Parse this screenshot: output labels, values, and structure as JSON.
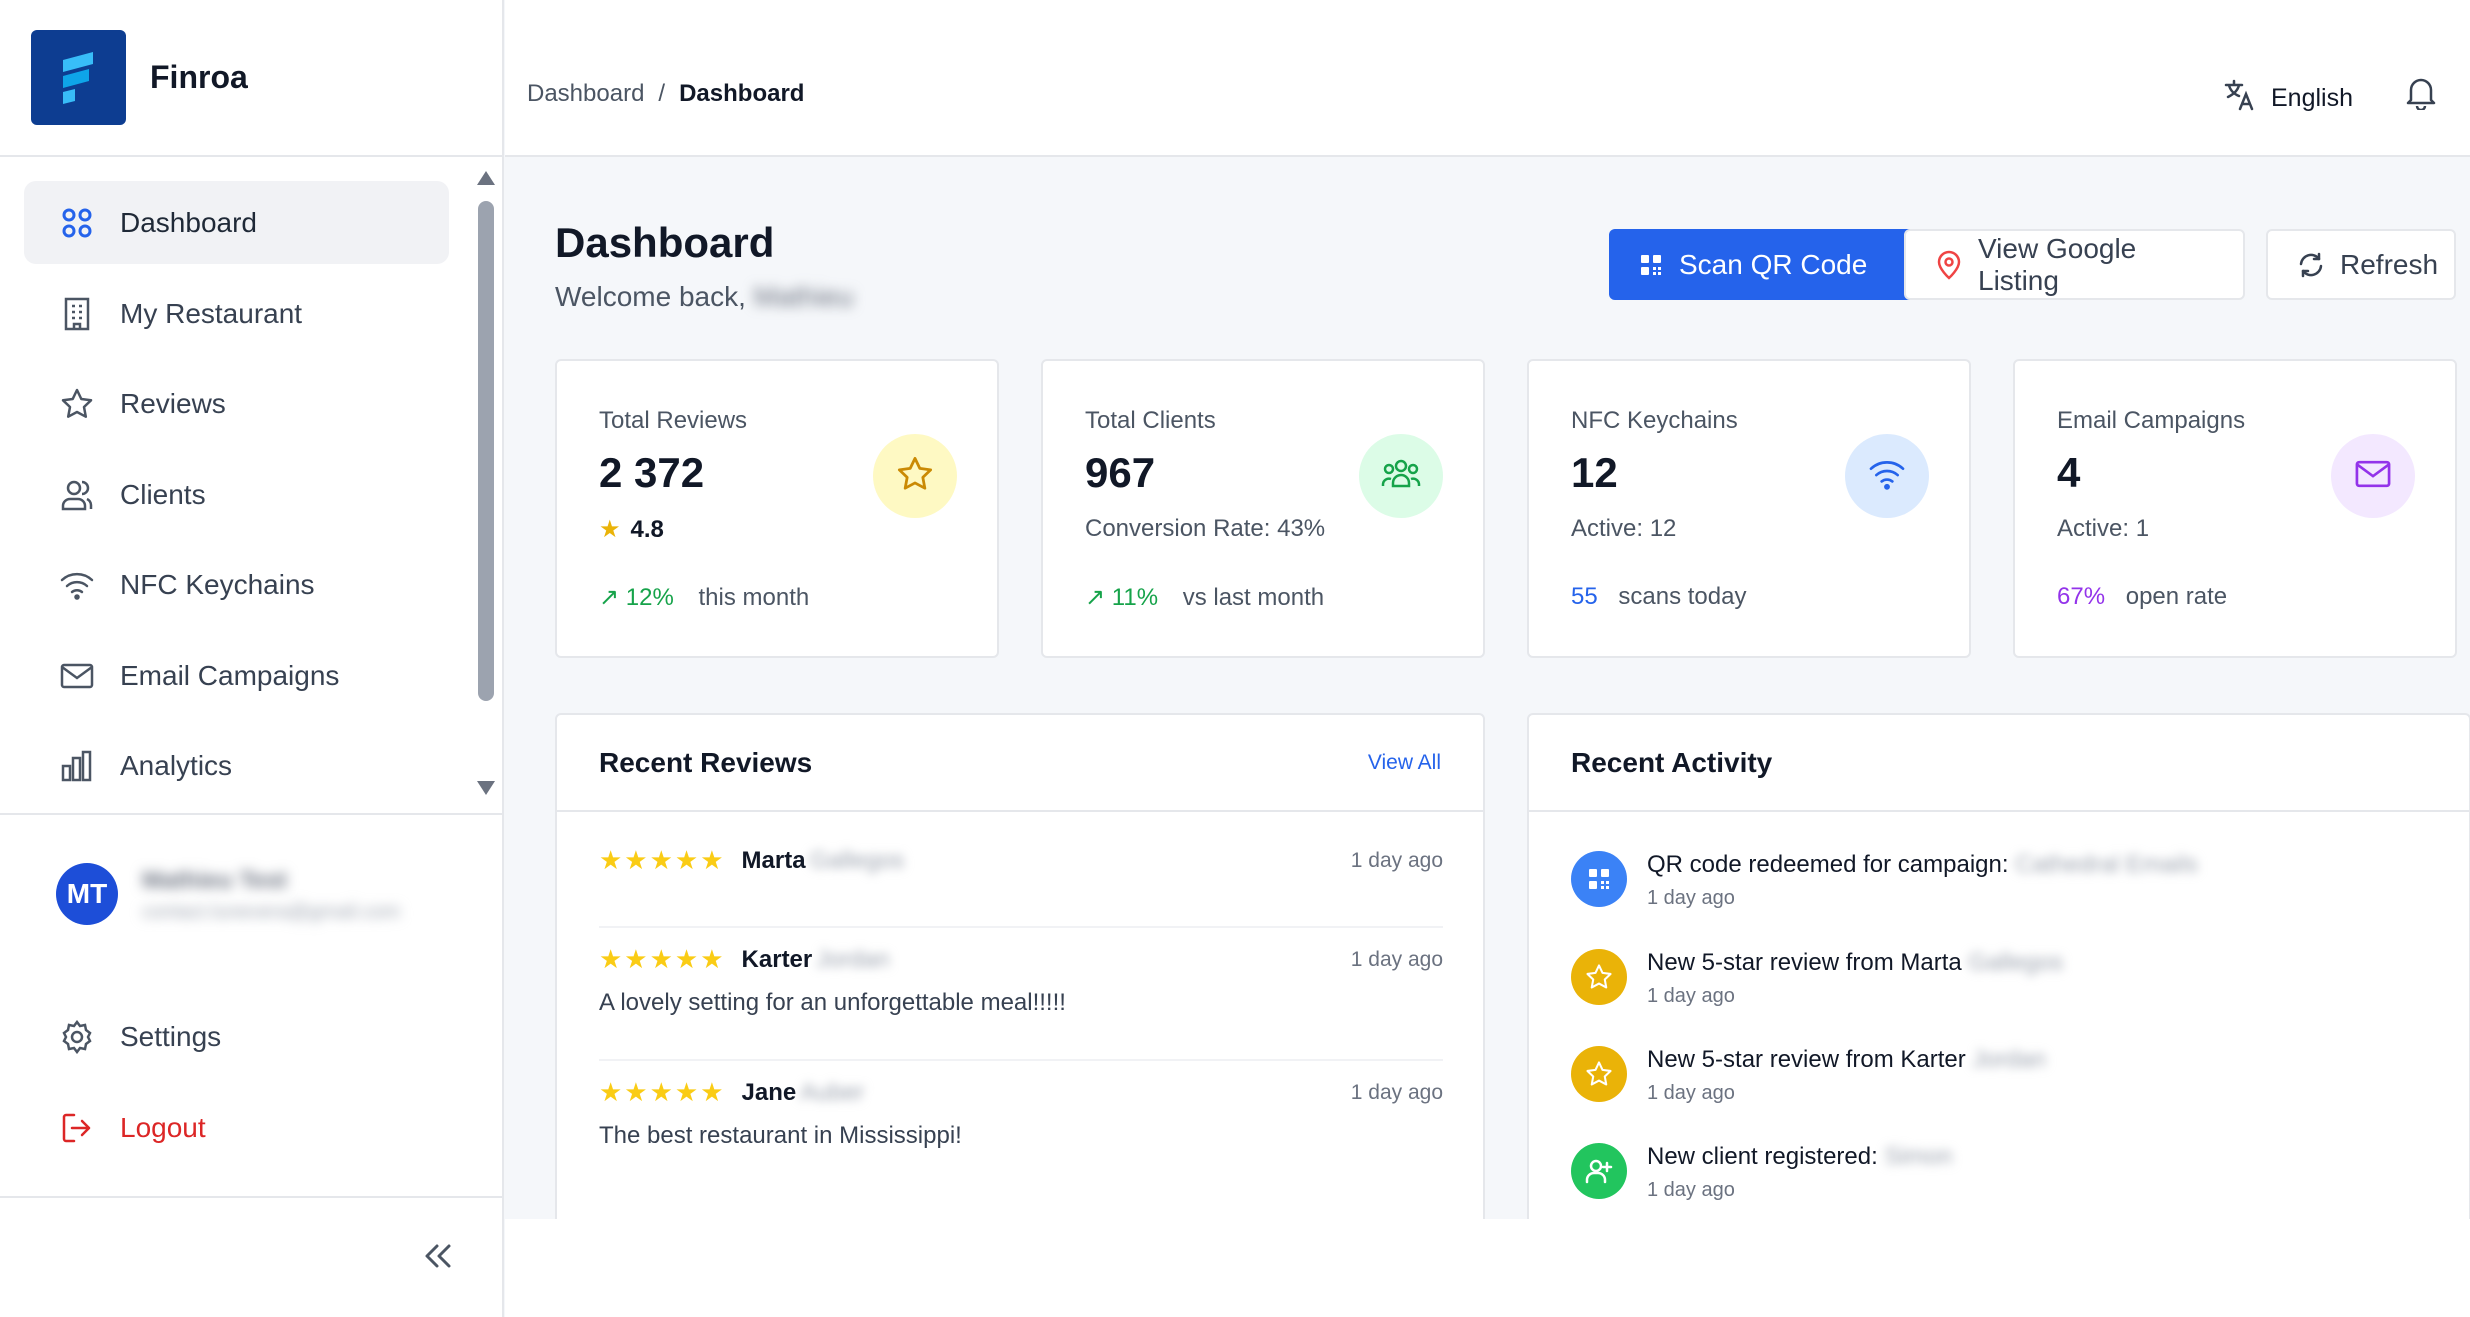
{
  "app": {
    "name": "Finroa"
  },
  "sidebar": {
    "items": [
      {
        "label": "Dashboard",
        "icon": "grid-icon",
        "active": true
      },
      {
        "label": "My Restaurant",
        "icon": "building-icon"
      },
      {
        "label": "Reviews",
        "icon": "star-icon"
      },
      {
        "label": "Clients",
        "icon": "users-icon"
      },
      {
        "label": "NFC Keychains",
        "icon": "wifi-icon"
      },
      {
        "label": "Email Campaigns",
        "icon": "mail-icon"
      },
      {
        "label": "Analytics",
        "icon": "bar-chart-icon"
      }
    ],
    "user": {
      "initials": "MT",
      "name": "Mathieu Test",
      "email": "contact.lunevera@gmail.com"
    },
    "settings_label": "Settings",
    "logout_label": "Logout"
  },
  "topbar": {
    "breadcrumb": [
      "Dashboard",
      "Dashboard"
    ],
    "breadcrumb_sep": "/",
    "language": "English"
  },
  "page": {
    "title": "Dashboard",
    "welcome_prefix": "Welcome back,",
    "welcome_name": "Mathieu",
    "buttons": {
      "scan": "Scan QR Code",
      "google": "View Google Listing",
      "refresh": "Refresh"
    }
  },
  "stats": [
    {
      "label": "Total Reviews",
      "value": "2 372",
      "rating": "4.8",
      "delta": "↗ 12%",
      "delta_text": "this month",
      "color": "#eab308",
      "bg": "#fef9c3"
    },
    {
      "label": "Total Clients",
      "value": "967",
      "sub": "Conversion Rate: 43%",
      "delta": "↗ 11%",
      "delta_text": "vs last month",
      "color": "#16a34a",
      "bg": "#dcfce7"
    },
    {
      "label": "NFC Keychains",
      "value": "12",
      "sub": "Active: 12",
      "delta": "55",
      "delta_text": "scans today",
      "color": "#2563eb",
      "bg": "#dbeafe"
    },
    {
      "label": "Email Campaigns",
      "value": "4",
      "sub": "Active: 1",
      "delta": "67%",
      "delta_text": "open rate",
      "color": "#9333ea",
      "bg": "#f3e8ff"
    }
  ],
  "reviews": {
    "title": "Recent Reviews",
    "view_all": "View All",
    "items": [
      {
        "stars": "★★★★★",
        "name": "Marta",
        "surname": "Gallegos",
        "date": "1 day ago",
        "text": ""
      },
      {
        "stars": "★★★★★",
        "name": "Karter",
        "surname": "Jordan",
        "date": "1 day ago",
        "text": "A lovely setting for an unforgettable meal!!!!!"
      },
      {
        "stars": "★★★★★",
        "name": "Jane",
        "surname": "Auber",
        "date": "1 day ago",
        "text": "The best restaurant in Mississippi!"
      }
    ]
  },
  "activity": {
    "title": "Recent Activity",
    "items": [
      {
        "text": "QR code redeemed for campaign:",
        "blur": "Cathedral Emails",
        "date": "1 day ago",
        "color": "#3b82f6",
        "icon": "qr-icon"
      },
      {
        "text": "New 5-star review from Marta",
        "blur": "Gallegos",
        "date": "1 day ago",
        "color": "#eab308",
        "icon": "star-icon"
      },
      {
        "text": "New 5-star review from Karter",
        "blur": "Jordan",
        "date": "1 day ago",
        "color": "#eab308",
        "icon": "star-icon"
      },
      {
        "text": "New client registered:",
        "blur": "Simon",
        "date": "1 day ago",
        "color": "#22c55e",
        "icon": "user-plus-icon"
      }
    ]
  }
}
